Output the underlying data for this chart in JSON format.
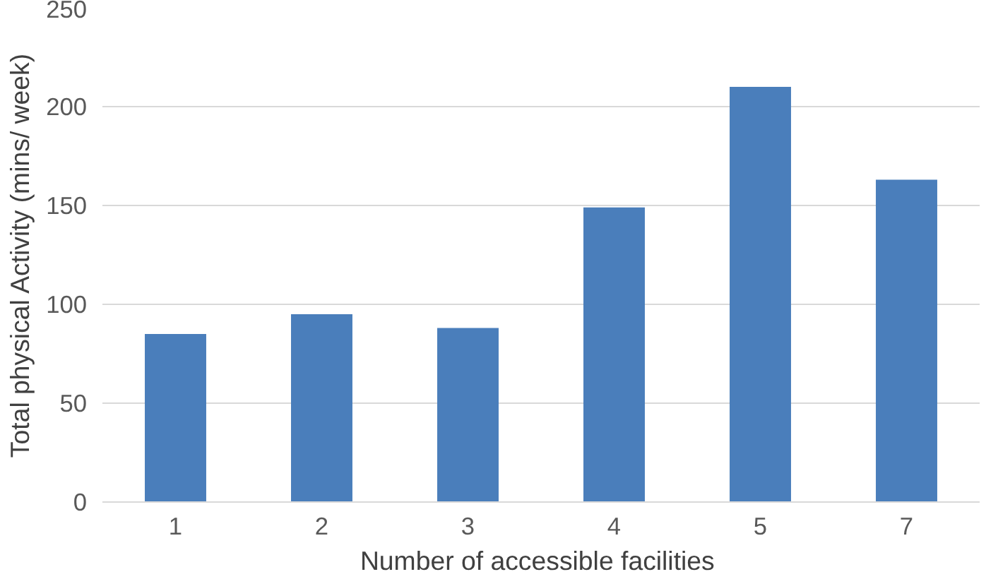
{
  "chart_data": {
    "type": "bar",
    "xlabel": "Number  of accessible facilities",
    "ylabel": "Total physical Activity (mins/ week)",
    "categories": [
      "1",
      "2",
      "3",
      "4",
      "5",
      "7"
    ],
    "values": [
      85,
      95,
      88,
      149,
      210,
      163
    ],
    "color": "#4a7ebb",
    "ylim": [
      0,
      250
    ],
    "yticks": [
      0,
      50,
      100,
      150,
      200,
      250
    ],
    "grid": "y"
  }
}
